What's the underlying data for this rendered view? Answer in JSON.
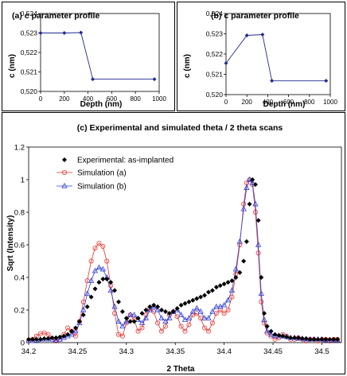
{
  "chart_data": [
    {
      "type": "line",
      "title": "(a) c parameter profile",
      "xlabel": "Depth (nm)",
      "ylabel": "c (nm)",
      "xlim": [
        0,
        1000
      ],
      "ylim": [
        0.52,
        0.524
      ],
      "x_ticks": [
        "0",
        "200",
        "400",
        "600",
        "800",
        "1000"
      ],
      "y_ticks": [
        "0,520",
        "0,521",
        "0,522",
        "0,523",
        "0,524"
      ],
      "series": [
        {
          "x": [
            0,
            200,
            340,
            440,
            960
          ],
          "values": [
            0.523,
            0.523,
            0.52302,
            0.52063,
            0.52063
          ]
        }
      ],
      "grid": false
    },
    {
      "type": "line",
      "title": "(b) c parameter profile",
      "xlabel": "Depth (nm)",
      "ylabel": "c (nm)",
      "xlim": [
        0,
        1000
      ],
      "ylim": [
        0.52,
        0.524
      ],
      "x_ticks": [
        "0",
        "200",
        "400",
        "600",
        "800",
        "1000"
      ],
      "y_ticks": [
        "0,520",
        "0,521",
        "0,522",
        "0,523",
        "0,524"
      ],
      "series": [
        {
          "x": [
            0,
            200,
            350,
            440,
            960
          ],
          "values": [
            0.52155,
            0.52292,
            0.52296,
            0.52068,
            0.52068
          ]
        }
      ],
      "grid": false
    },
    {
      "type": "scatter",
      "title": "(c) Experimental and simulated theta / 2 theta scans",
      "xlabel": "2 Theta",
      "ylabel": "Sqrt (Intensity)",
      "xlim": [
        34.2,
        34.52
      ],
      "ylim": [
        0,
        1.2
      ],
      "x_ticks": [
        "34.2",
        "34.25",
        "34.3",
        "34.35",
        "34.4",
        "34.45",
        "34.5"
      ],
      "y_ticks": [
        "0",
        "0.2",
        "0.4",
        "0.6",
        "0.8",
        "1",
        "1.2"
      ],
      "legend_position": "top-left",
      "series": [
        {
          "name": "Experimental: as-implanted",
          "color": "#000000",
          "marker": "diamond",
          "x": [
            34.2,
            34.204,
            34.208,
            34.212,
            34.216,
            34.22,
            34.224,
            34.228,
            34.232,
            34.236,
            34.24,
            34.244,
            34.248,
            34.252,
            34.256,
            34.26,
            34.264,
            34.268,
            34.272,
            34.276,
            34.28,
            34.284,
            34.288,
            34.292,
            34.296,
            34.3,
            34.304,
            34.308,
            34.312,
            34.316,
            34.32,
            34.324,
            34.328,
            34.332,
            34.336,
            34.34,
            34.344,
            34.348,
            34.352,
            34.356,
            34.36,
            34.364,
            34.368,
            34.372,
            34.376,
            34.38,
            34.384,
            34.388,
            34.392,
            34.396,
            34.4,
            34.404,
            34.408,
            34.412,
            34.416,
            34.42,
            34.423,
            34.426,
            34.429,
            34.432,
            34.435,
            34.438,
            34.441,
            34.444,
            34.448,
            34.452,
            34.456,
            34.46,
            34.464,
            34.468,
            34.472,
            34.476,
            34.48,
            34.484,
            34.488,
            34.492,
            34.496,
            34.5,
            34.504,
            34.508,
            34.512,
            34.516
          ],
          "values": [
            0.02,
            0.02,
            0.02,
            0.02,
            0.025,
            0.025,
            0.03,
            0.03,
            0.035,
            0.04,
            0.05,
            0.07,
            0.09,
            0.13,
            0.17,
            0.22,
            0.28,
            0.33,
            0.37,
            0.39,
            0.39,
            0.37,
            0.32,
            0.25,
            0.19,
            0.15,
            0.13,
            0.13,
            0.15,
            0.18,
            0.2,
            0.22,
            0.23,
            0.22,
            0.2,
            0.19,
            0.18,
            0.19,
            0.21,
            0.23,
            0.24,
            0.25,
            0.26,
            0.27,
            0.28,
            0.29,
            0.31,
            0.32,
            0.34,
            0.35,
            0.36,
            0.37,
            0.38,
            0.4,
            0.43,
            0.5,
            0.62,
            0.85,
            1.0,
            0.97,
            0.75,
            0.4,
            0.18,
            0.1,
            0.07,
            0.05,
            0.045,
            0.04,
            0.035,
            0.03,
            0.03,
            0.03,
            0.025,
            0.025,
            0.02,
            0.02,
            0.02,
            0.02,
            0.02,
            0.02,
            0.02,
            0.02
          ]
        },
        {
          "name": "Simulation (a)",
          "color": "#e8322e",
          "marker": "circle",
          "x": [
            34.2,
            34.204,
            34.208,
            34.212,
            34.216,
            34.22,
            34.224,
            34.228,
            34.232,
            34.236,
            34.24,
            34.244,
            34.248,
            34.252,
            34.256,
            34.26,
            34.264,
            34.268,
            34.272,
            34.276,
            34.28,
            34.284,
            34.288,
            34.292,
            34.296,
            34.3,
            34.304,
            34.308,
            34.312,
            34.316,
            34.32,
            34.324,
            34.328,
            34.332,
            34.336,
            34.34,
            34.344,
            34.348,
            34.352,
            34.356,
            34.36,
            34.364,
            34.368,
            34.372,
            34.376,
            34.38,
            34.384,
            34.388,
            34.392,
            34.396,
            34.4,
            34.404,
            34.408,
            34.412,
            34.416,
            34.42,
            34.423,
            34.426,
            34.429,
            34.432,
            34.435,
            34.438,
            34.441,
            34.444,
            34.448,
            34.452,
            34.456,
            34.46,
            34.464,
            34.468,
            34.472,
            34.476,
            34.48,
            34.484,
            34.488,
            34.492,
            34.496,
            34.5,
            34.504,
            34.508,
            34.512,
            34.516
          ],
          "values": [
            0.01,
            0.02,
            0.04,
            0.055,
            0.06,
            0.05,
            0.02,
            0.01,
            0.02,
            0.05,
            0.09,
            0.07,
            0.04,
            0.13,
            0.25,
            0.38,
            0.5,
            0.58,
            0.61,
            0.59,
            0.5,
            0.35,
            0.18,
            0.05,
            0.04,
            0.12,
            0.17,
            0.14,
            0.07,
            0.09,
            0.17,
            0.21,
            0.19,
            0.12,
            0.07,
            0.1,
            0.17,
            0.19,
            0.16,
            0.1,
            0.07,
            0.11,
            0.17,
            0.18,
            0.15,
            0.09,
            0.07,
            0.12,
            0.18,
            0.2,
            0.18,
            0.2,
            0.28,
            0.42,
            0.6,
            0.85,
            0.98,
            1.0,
            0.97,
            0.8,
            0.55,
            0.25,
            0.12,
            0.06,
            0.04,
            0.02,
            0.03,
            0.05,
            0.04,
            0.02,
            0.02,
            0.03,
            0.02,
            0.01,
            0.02,
            0.02,
            0.01,
            0.02,
            0.02,
            0.01,
            0.02,
            0.02
          ]
        },
        {
          "name": "Simulation (b)",
          "color": "#2b3fd6",
          "marker": "triangle",
          "x": [
            34.2,
            34.204,
            34.208,
            34.212,
            34.216,
            34.22,
            34.224,
            34.228,
            34.232,
            34.236,
            34.24,
            34.244,
            34.248,
            34.252,
            34.256,
            34.26,
            34.264,
            34.268,
            34.272,
            34.276,
            34.28,
            34.284,
            34.288,
            34.292,
            34.296,
            34.3,
            34.304,
            34.308,
            34.312,
            34.316,
            34.32,
            34.324,
            34.328,
            34.332,
            34.336,
            34.34,
            34.344,
            34.348,
            34.352,
            34.356,
            34.36,
            34.364,
            34.368,
            34.372,
            34.376,
            34.38,
            34.384,
            34.388,
            34.392,
            34.396,
            34.4,
            34.404,
            34.408,
            34.412,
            34.416,
            34.42,
            34.423,
            34.426,
            34.429,
            34.432,
            34.435,
            34.438,
            34.441,
            34.444,
            34.448,
            34.452,
            34.456,
            34.46,
            34.464,
            34.468,
            34.472,
            34.476,
            34.48,
            34.484,
            34.488,
            34.492,
            34.496,
            34.5,
            34.504,
            34.508,
            34.512,
            34.516
          ],
          "values": [
            0.01,
            0.01,
            0.015,
            0.02,
            0.02,
            0.02,
            0.02,
            0.015,
            0.02,
            0.03,
            0.04,
            0.05,
            0.07,
            0.12,
            0.2,
            0.3,
            0.38,
            0.44,
            0.46,
            0.45,
            0.4,
            0.32,
            0.22,
            0.13,
            0.1,
            0.13,
            0.17,
            0.17,
            0.14,
            0.12,
            0.15,
            0.2,
            0.22,
            0.2,
            0.15,
            0.13,
            0.15,
            0.19,
            0.2,
            0.17,
            0.14,
            0.15,
            0.19,
            0.21,
            0.19,
            0.15,
            0.15,
            0.19,
            0.22,
            0.22,
            0.23,
            0.26,
            0.32,
            0.45,
            0.62,
            0.82,
            0.95,
            1.0,
            0.98,
            0.85,
            0.6,
            0.3,
            0.14,
            0.07,
            0.05,
            0.04,
            0.04,
            0.04,
            0.035,
            0.03,
            0.03,
            0.025,
            0.025,
            0.02,
            0.02,
            0.02,
            0.02,
            0.02,
            0.015,
            0.015,
            0.015,
            0.015
          ]
        }
      ]
    }
  ]
}
